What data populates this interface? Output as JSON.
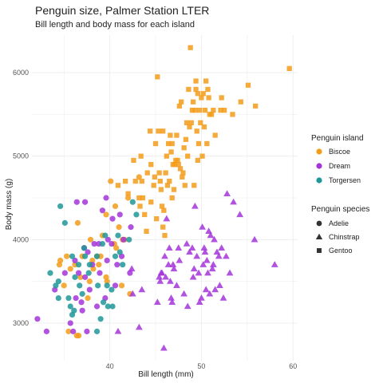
{
  "chart_data": {
    "type": "scatter",
    "title": "Penguin size, Palmer Station LTER",
    "subtitle": "Bill length and body mass for each island",
    "xlabel": "Bill length (mm)",
    "ylabel": "Body mass (g)",
    "xlim": [
      31.5,
      60.5
    ],
    "ylim": [
      2550,
      6450
    ],
    "x_ticks": [
      40,
      50,
      60
    ],
    "y_ticks": [
      3000,
      4000,
      5000,
      6000
    ],
    "grid": true,
    "legend_position": "right",
    "legend_color_title": "Penguin island",
    "legend_shape_title": "Penguin species",
    "islands": [
      {
        "name": "Biscoe",
        "color": "#F39C1A"
      },
      {
        "name": "Dream",
        "color": "#A335D9"
      },
      {
        "name": "Torgersen",
        "color": "#1F9698"
      }
    ],
    "species": [
      {
        "name": "Adelie",
        "shape": "circle"
      },
      {
        "name": "Chinstrap",
        "shape": "triangle"
      },
      {
        "name": "Gentoo",
        "shape": "square"
      }
    ],
    "series": [
      {
        "island": "Biscoe",
        "species": "Adelie",
        "points": [
          [
            34.5,
            3700
          ],
          [
            35.0,
            3450
          ],
          [
            35.3,
            3800
          ],
          [
            35.5,
            2900
          ],
          [
            35.7,
            3650
          ],
          [
            36.2,
            3700
          ],
          [
            36.4,
            2850
          ],
          [
            36.6,
            2850
          ],
          [
            36.8,
            3550
          ],
          [
            37.0,
            3800
          ],
          [
            37.6,
            3300
          ],
          [
            37.8,
            3500
          ],
          [
            38.1,
            3750
          ],
          [
            38.8,
            3700
          ],
          [
            39.2,
            4050
          ],
          [
            39.6,
            4300
          ],
          [
            39.7,
            3500
          ],
          [
            40.1,
            4700
          ],
          [
            40.6,
            4400
          ],
          [
            40.7,
            3900
          ],
          [
            41.0,
            4150
          ],
          [
            41.3,
            3450
          ],
          [
            41.6,
            4000
          ],
          [
            42.0,
            4500
          ],
          [
            42.2,
            3350
          ],
          [
            43.2,
            4750
          ],
          [
            41.4,
            4000
          ],
          [
            39.6,
            3550
          ],
          [
            38.6,
            3800
          ],
          [
            37.9,
            4000
          ],
          [
            34.6,
            3750
          ],
          [
            36.5,
            4200
          ],
          [
            38.2,
            3650
          ],
          [
            40.5,
            3950
          ],
          [
            39.0,
            3800
          ]
        ]
      },
      {
        "island": "Dream",
        "species": "Adelie",
        "points": [
          [
            32.1,
            3050
          ],
          [
            33.1,
            2900
          ],
          [
            34.0,
            3400
          ],
          [
            35.7,
            3000
          ],
          [
            36.0,
            2900
          ],
          [
            36.3,
            3300
          ],
          [
            36.6,
            3600
          ],
          [
            37.0,
            3150
          ],
          [
            37.2,
            3900
          ],
          [
            37.3,
            3550
          ],
          [
            37.5,
            2900
          ],
          [
            38.1,
            3700
          ],
          [
            38.3,
            3950
          ],
          [
            38.8,
            3950
          ],
          [
            39.2,
            4350
          ],
          [
            39.5,
            3300
          ],
          [
            39.6,
            4500
          ],
          [
            40.2,
            3950
          ],
          [
            40.6,
            3450
          ],
          [
            40.8,
            3700
          ],
          [
            41.1,
            4300
          ],
          [
            41.5,
            4000
          ],
          [
            42.2,
            3600
          ],
          [
            42.3,
            4150
          ],
          [
            36.4,
            4450
          ],
          [
            37.6,
            3850
          ],
          [
            40.3,
            4250
          ],
          [
            38.9,
            3600
          ],
          [
            35.1,
            3600
          ],
          [
            36.9,
            3250
          ],
          [
            37.8,
            3400
          ],
          [
            39.7,
            3750
          ],
          [
            38.6,
            3200
          ],
          [
            36.2,
            3750
          ],
          [
            41.3,
            3800
          ],
          [
            39.8,
            4000
          ],
          [
            37.3,
            4450
          ]
        ]
      },
      {
        "island": "Torgersen",
        "species": "Adelie",
        "points": [
          [
            33.5,
            3600
          ],
          [
            34.1,
            3450
          ],
          [
            34.4,
            3300
          ],
          [
            34.6,
            4400
          ],
          [
            35.1,
            4200
          ],
          [
            35.5,
            3300
          ],
          [
            35.7,
            3200
          ],
          [
            35.9,
            3800
          ],
          [
            36.2,
            3550
          ],
          [
            36.6,
            3700
          ],
          [
            36.7,
            3450
          ],
          [
            37.2,
            3900
          ],
          [
            37.3,
            3800
          ],
          [
            37.7,
            3600
          ],
          [
            37.8,
            3700
          ],
          [
            38.6,
            3800
          ],
          [
            38.7,
            3450
          ],
          [
            39.0,
            3050
          ],
          [
            39.2,
            3950
          ],
          [
            39.3,
            3250
          ],
          [
            39.5,
            4050
          ],
          [
            39.7,
            3450
          ],
          [
            40.2,
            3400
          ],
          [
            40.3,
            3200
          ],
          [
            40.9,
            4050
          ],
          [
            41.1,
            3850
          ],
          [
            41.4,
            3700
          ],
          [
            42.1,
            4000
          ],
          [
            42.5,
            4450
          ],
          [
            42.9,
            4300
          ],
          [
            38.6,
            2900
          ],
          [
            36.1,
            3150
          ],
          [
            37.0,
            3350
          ],
          [
            34.4,
            3500
          ],
          [
            39.8,
            3200
          ],
          [
            40.6,
            3800
          ],
          [
            35.9,
            3100
          ]
        ]
      },
      {
        "island": "Dream",
        "species": "Chinstrap",
        "points": [
          [
            40.9,
            2900
          ],
          [
            42.4,
            3650
          ],
          [
            42.5,
            3350
          ],
          [
            43.2,
            2950
          ],
          [
            43.5,
            3400
          ],
          [
            45.2,
            3250
          ],
          [
            45.4,
            3550
          ],
          [
            45.5,
            3500
          ],
          [
            45.6,
            3600
          ],
          [
            45.7,
            3600
          ],
          [
            46.0,
            3800
          ],
          [
            46.1,
            3550
          ],
          [
            46.4,
            3700
          ],
          [
            46.5,
            3900
          ],
          [
            46.6,
            3500
          ],
          [
            46.7,
            3300
          ],
          [
            46.8,
            3250
          ],
          [
            46.9,
            3700
          ],
          [
            47.0,
            3650
          ],
          [
            47.5,
            3900
          ],
          [
            48.1,
            3350
          ],
          [
            48.5,
            3200
          ],
          [
            49.0,
            3900
          ],
          [
            49.2,
            3650
          ],
          [
            49.5,
            3800
          ],
          [
            49.7,
            3600
          ],
          [
            49.8,
            3250
          ],
          [
            50.0,
            3300
          ],
          [
            50.2,
            3700
          ],
          [
            50.3,
            3900
          ],
          [
            50.5,
            3400
          ],
          [
            50.6,
            3750
          ],
          [
            50.7,
            3600
          ],
          [
            50.8,
            4100
          ],
          [
            50.9,
            3350
          ],
          [
            51.0,
            4050
          ],
          [
            51.3,
            3700
          ],
          [
            51.4,
            4000
          ],
          [
            51.5,
            3400
          ],
          [
            51.7,
            3850
          ],
          [
            51.9,
            3800
          ],
          [
            52.0,
            3450
          ],
          [
            52.2,
            3900
          ],
          [
            52.7,
            3800
          ],
          [
            52.8,
            4550
          ],
          [
            53.5,
            4450
          ],
          [
            54.2,
            4300
          ],
          [
            55.8,
            4000
          ],
          [
            58.0,
            3700
          ],
          [
            46.2,
            4250
          ],
          [
            47.6,
            3750
          ],
          [
            48.4,
            3950
          ],
          [
            49.3,
            4400
          ],
          [
            50.1,
            4150
          ],
          [
            45.9,
            2700
          ],
          [
            47.3,
            3450
          ],
          [
            48.7,
            3850
          ],
          [
            49.1,
            3550
          ],
          [
            50.4,
            3850
          ],
          [
            51.2,
            3650
          ],
          [
            52.4,
            3300
          ],
          [
            53.1,
            3600
          ]
        ]
      },
      {
        "island": "Biscoe",
        "species": "Gentoo",
        "points": [
          [
            40.9,
            4650
          ],
          [
            41.7,
            4700
          ],
          [
            42.0,
            4550
          ],
          [
            42.6,
            4950
          ],
          [
            42.8,
            4700
          ],
          [
            43.2,
            4500
          ],
          [
            43.3,
            4400
          ],
          [
            43.4,
            5000
          ],
          [
            43.5,
            4700
          ],
          [
            43.8,
            4300
          ],
          [
            44.0,
            4100
          ],
          [
            44.4,
            5300
          ],
          [
            44.5,
            4900
          ],
          [
            44.9,
            4750
          ],
          [
            45.0,
            5150
          ],
          [
            45.1,
            4250
          ],
          [
            45.2,
            5950
          ],
          [
            45.3,
            5300
          ],
          [
            45.4,
            4800
          ],
          [
            45.5,
            4700
          ],
          [
            45.7,
            4400
          ],
          [
            45.8,
            5300
          ],
          [
            46.1,
            4800
          ],
          [
            46.2,
            5000
          ],
          [
            46.4,
            5150
          ],
          [
            46.5,
            4700
          ],
          [
            46.6,
            5250
          ],
          [
            46.8,
            5150
          ],
          [
            46.9,
            4900
          ],
          [
            47.2,
            4950
          ],
          [
            47.3,
            5250
          ],
          [
            47.4,
            4950
          ],
          [
            47.5,
            4900
          ],
          [
            47.6,
            5600
          ],
          [
            47.7,
            4850
          ],
          [
            47.8,
            5650
          ],
          [
            48.1,
            5100
          ],
          [
            48.2,
            4650
          ],
          [
            48.4,
            5400
          ],
          [
            48.5,
            5000
          ],
          [
            48.6,
            5800
          ],
          [
            48.7,
            5350
          ],
          [
            48.8,
            6300
          ],
          [
            49.0,
            5550
          ],
          [
            49.1,
            5650
          ],
          [
            49.2,
            4650
          ],
          [
            49.3,
            5550
          ],
          [
            49.4,
            5800
          ],
          [
            49.5,
            5300
          ],
          [
            49.6,
            5750
          ],
          [
            49.8,
            5550
          ],
          [
            49.9,
            5400
          ],
          [
            50.0,
            5700
          ],
          [
            50.1,
            5000
          ],
          [
            50.2,
            5750
          ],
          [
            50.4,
            5550
          ],
          [
            50.5,
            5900
          ],
          [
            50.7,
            5800
          ],
          [
            50.8,
            5700
          ],
          [
            51.1,
            5500
          ],
          [
            51.3,
            5550
          ],
          [
            52.1,
            5550
          ],
          [
            52.2,
            5700
          ],
          [
            52.5,
            5550
          ],
          [
            53.4,
            5500
          ],
          [
            54.3,
            5650
          ],
          [
            55.1,
            5850
          ],
          [
            55.9,
            5600
          ],
          [
            59.6,
            6050
          ],
          [
            46.3,
            4650
          ],
          [
            47.0,
            4600
          ],
          [
            45.9,
            4350
          ],
          [
            44.1,
            4800
          ],
          [
            46.7,
            5050
          ],
          [
            48.3,
            5200
          ],
          [
            49.7,
            5150
          ],
          [
            50.3,
            5350
          ],
          [
            49.6,
            4950
          ],
          [
            46.0,
            4050
          ],
          [
            44.5,
            4450
          ],
          [
            45.6,
            4600
          ],
          [
            47.9,
            4750
          ],
          [
            51.5,
            5250
          ],
          [
            48.9,
            5400
          ],
          [
            50.6,
            5150
          ],
          [
            43.6,
            4500
          ],
          [
            44.8,
            4650
          ],
          [
            45.8,
            4150
          ],
          [
            46.8,
            4500
          ],
          [
            47.1,
            4900
          ],
          [
            48.0,
            4800
          ],
          [
            49.4,
            5900
          ],
          [
            50.9,
            5500
          ]
        ]
      }
    ]
  }
}
